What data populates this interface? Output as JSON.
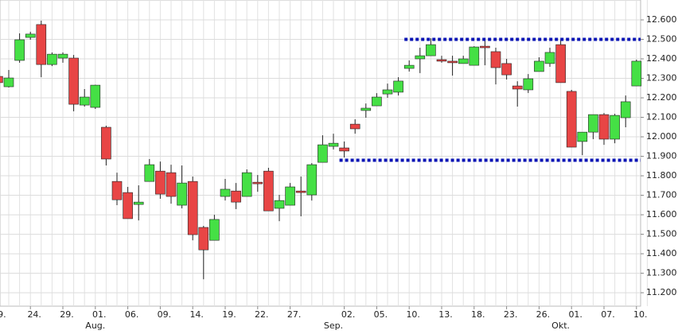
{
  "chart_data": {
    "type": "candlestick",
    "categories": [
      "9.",
      null,
      null,
      "24.",
      null,
      null,
      "29.",
      null,
      null,
      "01.",
      null,
      null,
      "06.",
      null,
      null,
      "09.",
      null,
      null,
      "14.",
      null,
      null,
      "19.",
      null,
      null,
      "22.",
      null,
      null,
      "27.",
      null,
      null,
      null,
      null,
      "02.",
      null,
      null,
      "05.",
      null,
      null,
      "10.",
      null,
      null,
      "13.",
      null,
      null,
      "18.",
      null,
      null,
      "23.",
      null,
      null,
      "26.",
      null,
      null,
      "01.",
      null,
      null,
      "07.",
      null,
      null,
      "10.",
      null
    ],
    "months": [
      null,
      null,
      null,
      null,
      null,
      null,
      null,
      null,
      null,
      "Aug.",
      null,
      null,
      null,
      null,
      null,
      null,
      null,
      null,
      null,
      null,
      null,
      null,
      null,
      null,
      null,
      null,
      null,
      null,
      null,
      null,
      null,
      "Sep.",
      null,
      null,
      null,
      null,
      null,
      null,
      null,
      null,
      null,
      null,
      null,
      null,
      null,
      null,
      null,
      null,
      null,
      null,
      null,
      null,
      "Okt.",
      null,
      null,
      null,
      null,
      null,
      null,
      null
    ],
    "open": [
      12310,
      12257,
      12392,
      12510,
      12576,
      12371,
      12404,
      12404,
      12163,
      12151,
      12049,
      11771,
      11714,
      11653,
      11771,
      11824,
      11816,
      11649,
      11771,
      11535,
      11469,
      11694,
      11722,
      11694,
      11767,
      11824,
      11633,
      11649,
      11722,
      11702,
      11869,
      11951,
      11943,
      12065,
      12135,
      12159,
      12220,
      12229,
      12351,
      12400,
      12416,
      12396,
      12388,
      12376,
      12367,
      12465,
      12437,
      12376,
      12261,
      12241,
      12335,
      12376,
      12473,
      12233,
      11976,
      12024,
      12114,
      11988,
      12098,
      12261
    ],
    "high": [
      12330,
      12343,
      12531,
      12539,
      12596,
      12433,
      12433,
      12420,
      12245,
      12267,
      12057,
      11816,
      11743,
      11751,
      11886,
      11873,
      11857,
      11853,
      11796,
      11543,
      11600,
      11784,
      11763,
      11833,
      11804,
      11841,
      11702,
      11763,
      11796,
      11865,
      12008,
      12016,
      11976,
      12090,
      12171,
      12224,
      12273,
      12306,
      12392,
      12457,
      12506,
      12416,
      12416,
      12416,
      12465,
      12498,
      12457,
      12400,
      12285,
      12322,
      12408,
      12457,
      12498,
      12241,
      12024,
      12114,
      12122,
      12118,
      12212,
      12396
    ],
    "low": [
      12250,
      12253,
      12380,
      12498,
      12306,
      12363,
      12380,
      12131,
      12155,
      12143,
      11853,
      11649,
      11580,
      11571,
      11771,
      11682,
      11657,
      11633,
      11469,
      11269,
      11469,
      11673,
      11629,
      11694,
      11718,
      11620,
      11567,
      11649,
      11592,
      11673,
      11869,
      11935,
      11894,
      12016,
      12098,
      12159,
      12200,
      12212,
      12335,
      12327,
      12416,
      12380,
      12314,
      12376,
      12367,
      12367,
      12269,
      12294,
      12155,
      12225,
      12335,
      12359,
      12278,
      11947,
      11906,
      11988,
      11959,
      11967,
      12049,
      12261
    ],
    "close": [
      12278,
      12302,
      12498,
      12527,
      12371,
      12424,
      12424,
      12167,
      12204,
      12265,
      11886,
      11677,
      11580,
      11665,
      11857,
      11706,
      11694,
      11763,
      11498,
      11420,
      11576,
      11731,
      11665,
      11816,
      11759,
      11620,
      11673,
      11743,
      11714,
      11857,
      11959,
      11967,
      11927,
      12041,
      12147,
      12204,
      12241,
      12286,
      12367,
      12416,
      12473,
      12388,
      12380,
      12400,
      12461,
      12457,
      12355,
      12318,
      12245,
      12298,
      12388,
      12433,
      12278,
      11947,
      12024,
      12114,
      11988,
      12110,
      12180,
      12388
    ],
    "up_color": "#45e045",
    "down_color": "#e84545",
    "levels": [
      {
        "value": 12500,
        "start": 38,
        "color": "#0a14b4"
      },
      {
        "value": 11880,
        "start": 32,
        "color": "#0a14b4"
      }
    ],
    "ylim": [
      11131,
      12702
    ],
    "yticks": [
      {
        "value": 11200,
        "label": "11.200"
      },
      {
        "value": 11300,
        "label": "11.300"
      },
      {
        "value": 11400,
        "label": "11.400"
      },
      {
        "value": 11500,
        "label": "11.500"
      },
      {
        "value": 11600,
        "label": "11.600"
      },
      {
        "value": 11700,
        "label": "11.700"
      },
      {
        "value": 11800,
        "label": "11.800"
      },
      {
        "value": 11900,
        "label": "11.900"
      },
      {
        "value": 12000,
        "label": "12.000"
      },
      {
        "value": 12100,
        "label": "12.100"
      },
      {
        "value": 12200,
        "label": "12.200"
      },
      {
        "value": 12300,
        "label": "12.300"
      },
      {
        "value": 12400,
        "label": "12.400"
      },
      {
        "value": 12500,
        "label": "12.500"
      },
      {
        "value": 12600,
        "label": "12.600"
      }
    ],
    "grid": true
  }
}
